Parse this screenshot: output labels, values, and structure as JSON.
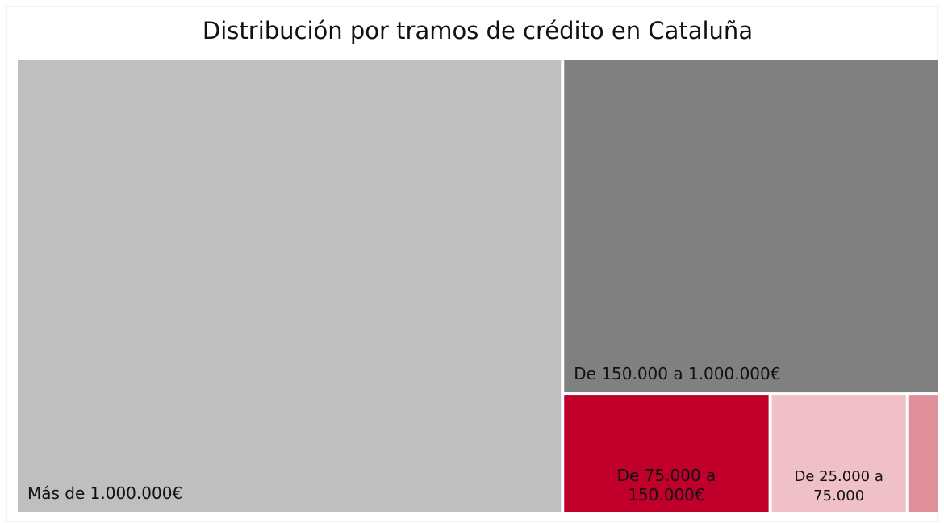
{
  "chart_data": {
    "type": "treemap",
    "title": "Distribución por tramos de crédito en Cataluña",
    "categories": [
      "Más de 1.000.000€",
      "De 150.000 a 1.000.000€",
      "De 75.000 a 150.000€",
      "De 25.000 a 75.000",
      null
    ],
    "values": [
      59.2,
      30.1,
      5.9,
      3.9,
      0.9
    ],
    "colors": [
      "#bfbfbf",
      "#808080",
      "#c0002a",
      "#f0c0c8",
      "#e0909a"
    ]
  }
}
